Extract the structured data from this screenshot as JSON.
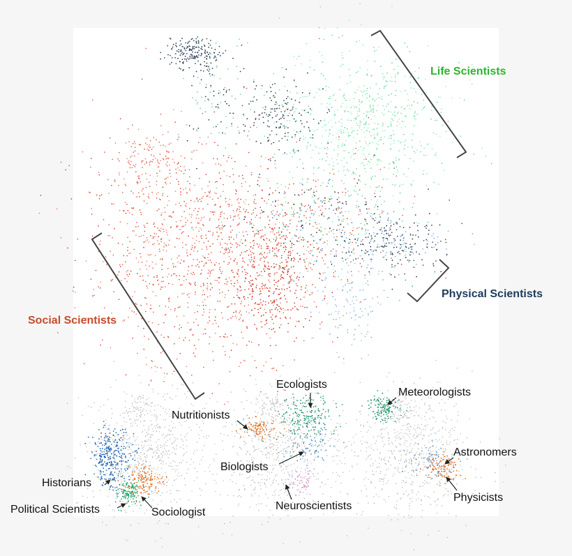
{
  "main": {
    "groups": {
      "life": "Life Scientists",
      "physical": "Physical Scientists",
      "social": "Social Scientists"
    }
  },
  "panels": [
    {
      "labels": [
        "Historians",
        "Political Scientists",
        "Sociologist"
      ]
    },
    {
      "labels": [
        "Ecologists",
        "Nutritionists",
        "Biologists",
        "Neuroscientists"
      ]
    },
    {
      "labels": [
        "Meteorologists",
        "Astronomers",
        "Physicists"
      ]
    }
  ]
}
